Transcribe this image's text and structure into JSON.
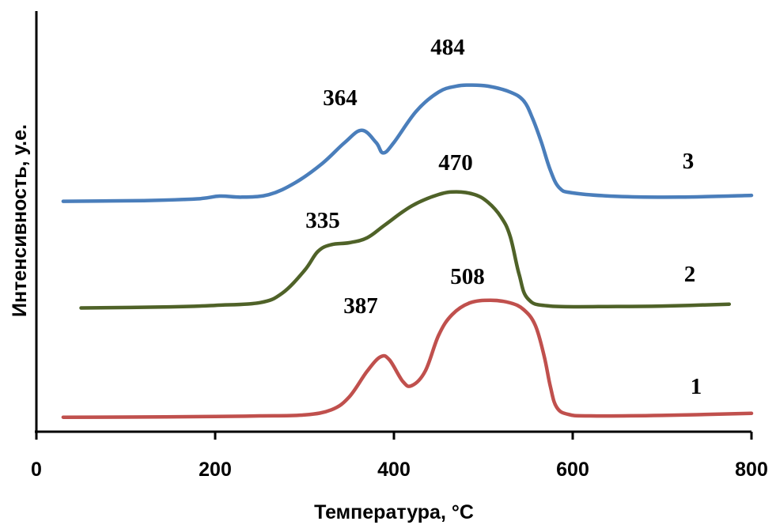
{
  "chart_data": {
    "type": "line",
    "title": "",
    "xlabel": "Температура, °С",
    "ylabel": "Интенсивность, у.е.",
    "xlim": [
      0,
      800
    ],
    "xticks": [
      "0",
      "200",
      "400",
      "600",
      "800"
    ],
    "y_ticks_shown": false,
    "grid": false,
    "legend": "none",
    "series": [
      {
        "name": "1",
        "color": "#C0504D",
        "peak_labels": [
          {
            "x": 387,
            "text": "387"
          },
          {
            "x": 508,
            "text": "508"
          }
        ],
        "points": [
          [
            30,
            0.05
          ],
          [
            100,
            0.08
          ],
          [
            200,
            0.2
          ],
          [
            250,
            0.3
          ],
          [
            300,
            0.5
          ],
          [
            330,
            1.5
          ],
          [
            350,
            4
          ],
          [
            370,
            9
          ],
          [
            385,
            11.8
          ],
          [
            395,
            11.2
          ],
          [
            410,
            7
          ],
          [
            420,
            6.2
          ],
          [
            435,
            9
          ],
          [
            450,
            16
          ],
          [
            465,
            20
          ],
          [
            485,
            22.3
          ],
          [
            508,
            22.8
          ],
          [
            530,
            22.3
          ],
          [
            545,
            21
          ],
          [
            558,
            18
          ],
          [
            568,
            12
          ],
          [
            575,
            6
          ],
          [
            582,
            2
          ],
          [
            595,
            0.6
          ],
          [
            620,
            0.3
          ],
          [
            700,
            0.4
          ],
          [
            800,
            0.8
          ]
        ]
      },
      {
        "name": "2",
        "color": "#4F6228",
        "peak_labels": [
          {
            "x": 335,
            "text": "335"
          },
          {
            "x": 470,
            "text": "470"
          }
        ],
        "points": [
          [
            50,
            0.1
          ],
          [
            150,
            0.4
          ],
          [
            200,
            0.8
          ],
          [
            250,
            1.5
          ],
          [
            275,
            4
          ],
          [
            300,
            10
          ],
          [
            315,
            15
          ],
          [
            330,
            16.8
          ],
          [
            350,
            17.3
          ],
          [
            370,
            18.6
          ],
          [
            390,
            22
          ],
          [
            420,
            27
          ],
          [
            450,
            30
          ],
          [
            470,
            30.7
          ],
          [
            490,
            30
          ],
          [
            505,
            28
          ],
          [
            520,
            24
          ],
          [
            530,
            19
          ],
          [
            540,
            9
          ],
          [
            550,
            2.5
          ],
          [
            575,
            0.6
          ],
          [
            650,
            0.5
          ],
          [
            700,
            0.6
          ],
          [
            775,
            1.1
          ]
        ]
      },
      {
        "name": "3",
        "color": "#4A7EBB",
        "peak_labels": [
          {
            "x": 364,
            "text": "364"
          },
          {
            "x": 484,
            "text": "484"
          }
        ],
        "points": [
          [
            30,
            0.1
          ],
          [
            120,
            0.3
          ],
          [
            180,
            0.8
          ],
          [
            205,
            1.6
          ],
          [
            230,
            1.3
          ],
          [
            260,
            2
          ],
          [
            290,
            5.5
          ],
          [
            320,
            11
          ],
          [
            345,
            17
          ],
          [
            364,
            20.5
          ],
          [
            380,
            17
          ],
          [
            388,
            14
          ],
          [
            400,
            17
          ],
          [
            425,
            26
          ],
          [
            450,
            31.5
          ],
          [
            470,
            33.2
          ],
          [
            484,
            33.5
          ],
          [
            505,
            33.2
          ],
          [
            530,
            31.5
          ],
          [
            545,
            29
          ],
          [
            555,
            24
          ],
          [
            565,
            17
          ],
          [
            575,
            9
          ],
          [
            585,
            4
          ],
          [
            600,
            2.5
          ],
          [
            650,
            1.5
          ],
          [
            720,
            1.3
          ],
          [
            800,
            1.8
          ]
        ]
      }
    ]
  }
}
